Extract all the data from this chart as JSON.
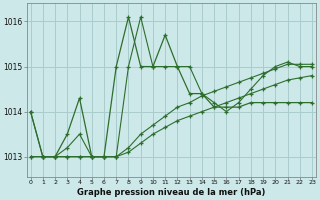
{
  "background_color": "#cce8e8",
  "grid_color": "#aacccc",
  "line_color": "#2d6e2d",
  "title": "Graphe pression niveau de la mer (hPa)",
  "hours": [
    0,
    1,
    2,
    3,
    4,
    5,
    6,
    7,
    8,
    9,
    10,
    11,
    12,
    13,
    14,
    15,
    16,
    17,
    18,
    19,
    20,
    21,
    22,
    23
  ],
  "yticks": [
    1013,
    1014,
    1015,
    1016
  ],
  "ylim": [
    1012.55,
    1016.4
  ],
  "xlim": [
    -0.3,
    23.3
  ],
  "series_spiky": [
    1014.0,
    1013.0,
    1013.0,
    1013.5,
    1014.3,
    1013.0,
    1013.0,
    1015.0,
    1016.1,
    1015.0,
    1015.0,
    1015.7,
    1015.0,
    1014.4,
    1014.4,
    1014.1,
    1014.1,
    1014.1,
    1014.2,
    1014.2,
    1014.2,
    1014.2,
    1014.2,
    1014.2
  ],
  "series_upper": [
    1014.0,
    1013.0,
    1013.0,
    1013.2,
    1013.5,
    1013.0,
    1013.0,
    1013.0,
    1015.0,
    1016.1,
    1015.0,
    1015.0,
    1015.0,
    1015.0,
    1014.4,
    1014.2,
    1014.0,
    1014.2,
    1014.5,
    1014.8,
    1015.0,
    1015.1,
    1015.0,
    1015.0
  ],
  "series_lower": [
    1013.0,
    1013.0,
    1013.0,
    1013.0,
    1013.0,
    1013.0,
    1013.0,
    1013.0,
    1013.1,
    1013.3,
    1013.5,
    1013.65,
    1013.8,
    1013.9,
    1014.0,
    1014.1,
    1014.2,
    1014.3,
    1014.4,
    1014.5,
    1014.6,
    1014.7,
    1014.75,
    1014.8
  ],
  "series_mid": [
    1013.0,
    1013.0,
    1013.0,
    1013.0,
    1013.0,
    1013.0,
    1013.0,
    1013.0,
    1013.2,
    1013.5,
    1013.7,
    1013.9,
    1014.1,
    1014.2,
    1014.35,
    1014.45,
    1014.55,
    1014.65,
    1014.75,
    1014.85,
    1014.95,
    1015.05,
    1015.05,
    1015.05
  ]
}
